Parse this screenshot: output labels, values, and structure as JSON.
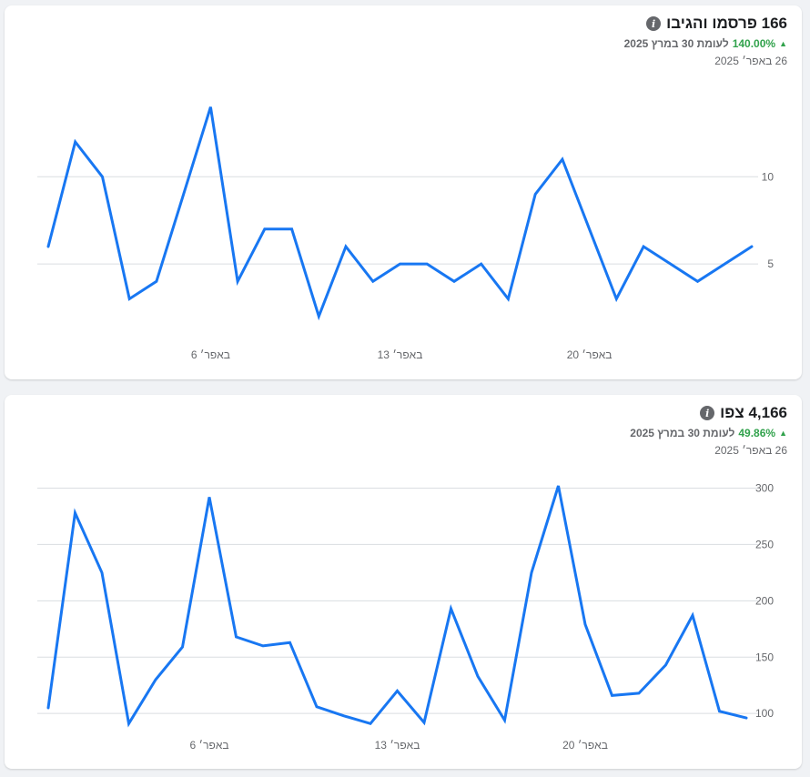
{
  "cards": [
    {
      "title": "166 פרסמו והגיבו",
      "delta_pct": "140.00%",
      "delta_text": "לעומת 30 במרץ 2025",
      "date": "26 באפר׳ 2025",
      "info_icon": "info-icon",
      "arrow_icon": "arrow-up-icon",
      "accent": "#1877f2",
      "up_color": "#31a24c"
    },
    {
      "title": "4,166 צפו",
      "delta_pct": "49.86%",
      "delta_text": "לעומת 30 במרץ 2025",
      "date": "26 באפר׳ 2025",
      "info_icon": "info-icon",
      "arrow_icon": "arrow-up-icon",
      "accent": "#1877f2",
      "up_color": "#31a24c"
    }
  ],
  "chart_data": [
    {
      "type": "line",
      "title": "",
      "xlabel": "",
      "ylabel": "",
      "x": [
        1,
        2,
        3,
        4,
        5,
        6,
        7,
        8,
        9,
        10,
        11,
        12,
        13,
        14,
        15,
        16,
        17,
        18,
        19,
        20,
        21,
        22,
        23,
        24,
        25,
        26,
        27
      ],
      "x_ticks": [
        {
          "x": 7,
          "label": "6 באפר׳"
        },
        {
          "x": 14,
          "label": "13 באפר׳"
        },
        {
          "x": 21,
          "label": "20 באפר׳"
        }
      ],
      "y_ticks": [
        5,
        10
      ],
      "ylim": [
        0,
        14.5
      ],
      "grid": true,
      "series": [
        {
          "values": [
            6,
            12,
            10,
            3,
            4,
            9,
            14,
            4,
            7,
            7,
            2,
            6,
            4,
            5,
            5,
            4,
            5,
            3,
            9,
            11,
            7,
            3,
            6,
            5,
            4,
            5,
            6
          ]
        }
      ]
    },
    {
      "type": "line",
      "title": "",
      "xlabel": "",
      "ylabel": "",
      "x": [
        1,
        2,
        3,
        4,
        5,
        6,
        7,
        8,
        9,
        10,
        11,
        12,
        13,
        14,
        15,
        16,
        17,
        18,
        19,
        20,
        21,
        22,
        23,
        24,
        25,
        26,
        27
      ],
      "x_ticks": [
        {
          "x": 7,
          "label": "6 באפר׳"
        },
        {
          "x": 14,
          "label": "13 באפר׳"
        },
        {
          "x": 21,
          "label": "20 באפר׳"
        }
      ],
      "y_ticks": [
        100,
        150,
        200,
        250,
        300
      ],
      "ylim": [
        84,
        302
      ],
      "grid": true,
      "series": [
        {
          "values": [
            105,
            278,
            225,
            91,
            130,
            159,
            292,
            168,
            160,
            163,
            106,
            98,
            91,
            120,
            92,
            193,
            133,
            94,
            225,
            302,
            179,
            116,
            118,
            143,
            187,
            102,
            96
          ]
        }
      ]
    }
  ]
}
